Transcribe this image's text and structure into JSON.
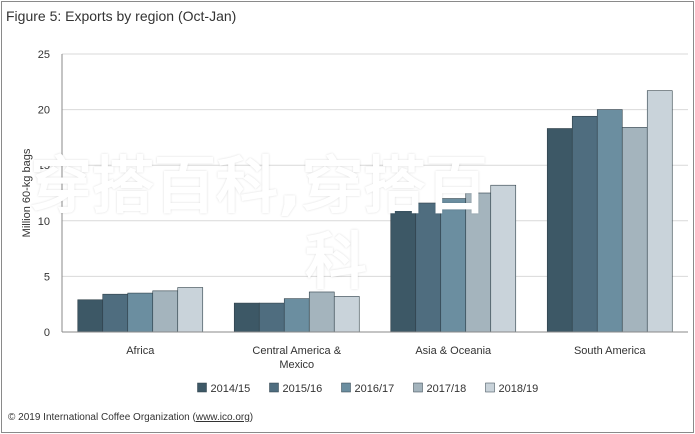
{
  "chart_data": {
    "type": "bar",
    "title": "Figure 5: Exports by region (Oct-Jan)",
    "ylabel": "Million 60-kg bags",
    "xlabel": "",
    "ylim": [
      0,
      25
    ],
    "yticks": [
      0,
      5,
      10,
      15,
      20,
      25
    ],
    "grid": true,
    "legend_position": "bottom",
    "categories": [
      "Africa",
      "Central America & Mexico",
      "Asia & Oceania",
      "South America"
    ],
    "category_lines": [
      [
        "Africa"
      ],
      [
        "Central America &",
        "Mexico"
      ],
      [
        "Asia & Oceania"
      ],
      [
        "South America"
      ]
    ],
    "series": [
      {
        "name": "2014/15",
        "color": "#3d5866",
        "values": [
          2.9,
          2.6,
          11.2,
          18.3
        ]
      },
      {
        "name": "2015/16",
        "color": "#4f6d7f",
        "values": [
          3.4,
          2.6,
          11.6,
          19.4
        ]
      },
      {
        "name": "2016/17",
        "color": "#6b8ea0",
        "values": [
          3.5,
          3.0,
          12.0,
          20.0
        ]
      },
      {
        "name": "2017/18",
        "color": "#a4b4bd",
        "values": [
          3.7,
          3.6,
          12.5,
          18.4
        ]
      },
      {
        "name": "2018/19",
        "color": "#c9d3da",
        "values": [
          4.0,
          3.2,
          13.2,
          21.7
        ]
      }
    ]
  },
  "source": {
    "prefix": "© 2019 International Coffee Organization (",
    "link": "www.ico.org",
    "suffix": ")"
  },
  "watermark": {
    "line1": "穿搭百科,穿搭百",
    "line2": "科"
  }
}
